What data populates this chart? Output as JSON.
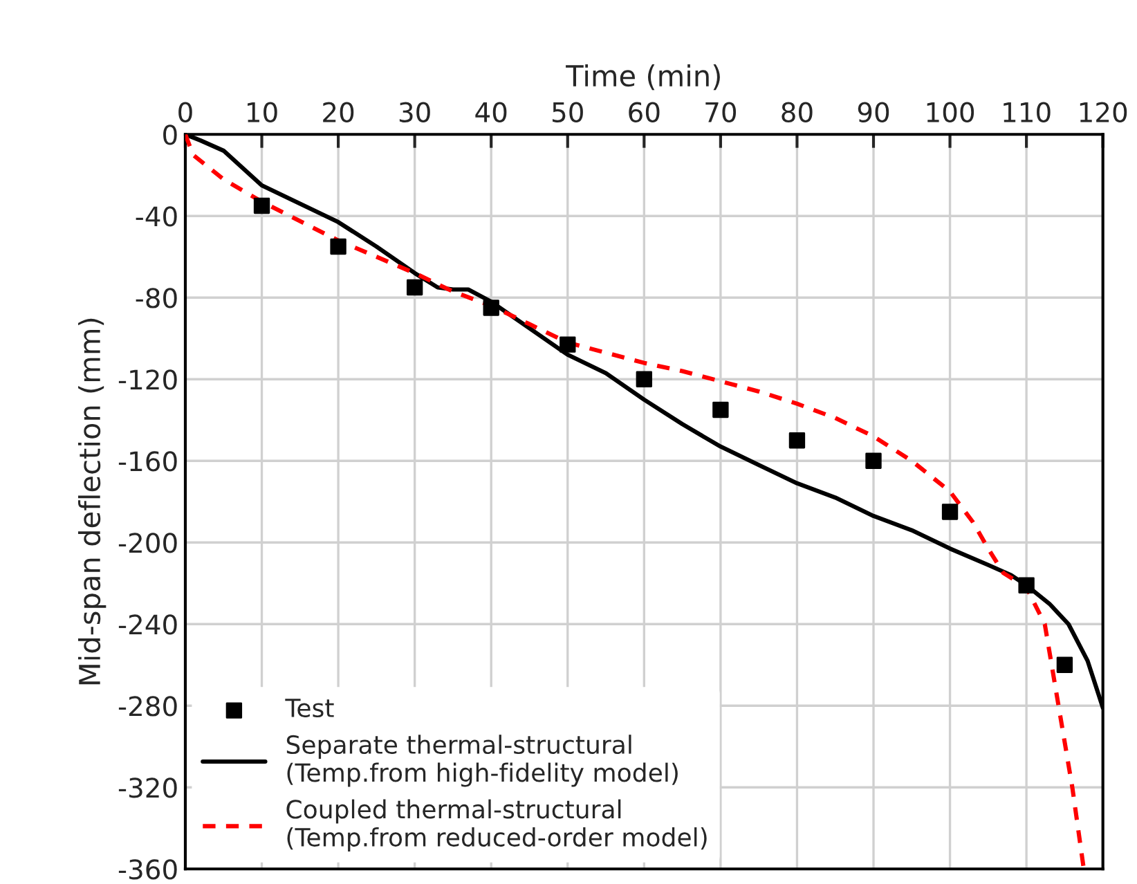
{
  "chart_data": {
    "type": "line",
    "xlabel": "Time (min)",
    "ylabel": "Mid-span deflection (mm)",
    "xlim": [
      0,
      120
    ],
    "xticks": [
      0,
      10,
      20,
      30,
      40,
      50,
      60,
      70,
      80,
      90,
      100,
      110,
      120
    ],
    "ylim": [
      -360,
      0
    ],
    "yticks": [
      0,
      -40,
      -80,
      -120,
      -160,
      -200,
      -240,
      -280,
      -320,
      -360
    ],
    "grid": true,
    "legend": "bottom left",
    "series": [
      {
        "name": "Test",
        "type": "scatter",
        "marker": "square",
        "color": "#000000",
        "x": [
          10,
          20,
          30,
          40,
          50,
          60,
          70,
          80,
          90,
          100,
          110,
          115
        ],
        "values": [
          -35,
          -55,
          -75,
          -85,
          -103,
          -120,
          -135,
          -150,
          -160,
          -185,
          -221,
          -260
        ]
      },
      {
        "name": "Separate thermal-structural\n(Temp.from high-fidelity model)",
        "line_style": "solid",
        "color": "#000000",
        "x": [
          0,
          2,
          5,
          10,
          15,
          20,
          25,
          30,
          33,
          35,
          37,
          40,
          45,
          50,
          55,
          60,
          65,
          70,
          75,
          80,
          85,
          90,
          95,
          100,
          105,
          108,
          110,
          113,
          115.5,
          118,
          120
        ],
        "values": [
          0,
          -3,
          -8,
          -25,
          -34,
          -43,
          -55,
          -68,
          -75,
          -76,
          -76,
          -82,
          -95,
          -108,
          -117,
          -130,
          -142,
          -153,
          -162,
          -171,
          -178,
          -187,
          -194,
          -203,
          -211,
          -216,
          -221,
          -230,
          -240,
          -258,
          -281
        ]
      },
      {
        "name": "Coupled thermal-structural\n(Temp.from reduced-order model)",
        "line_style": "dashed",
        "color": "#ff0000",
        "x": [
          0,
          1,
          5,
          10,
          20,
          30,
          35,
          40,
          45,
          50,
          55,
          60,
          65,
          70,
          75,
          80,
          85,
          90,
          95,
          100,
          103,
          105,
          107,
          110,
          112.4,
          114.2,
          116,
          117.5
        ],
        "values": [
          0,
          -10,
          -22,
          -33,
          -52,
          -68,
          -77,
          -84,
          -93,
          -102,
          -107,
          -112,
          -116,
          -121,
          -126,
          -132,
          -139,
          -148,
          -160,
          -175,
          -190,
          -203,
          -215,
          -222,
          -240,
          -280,
          -320,
          -360
        ]
      }
    ]
  }
}
